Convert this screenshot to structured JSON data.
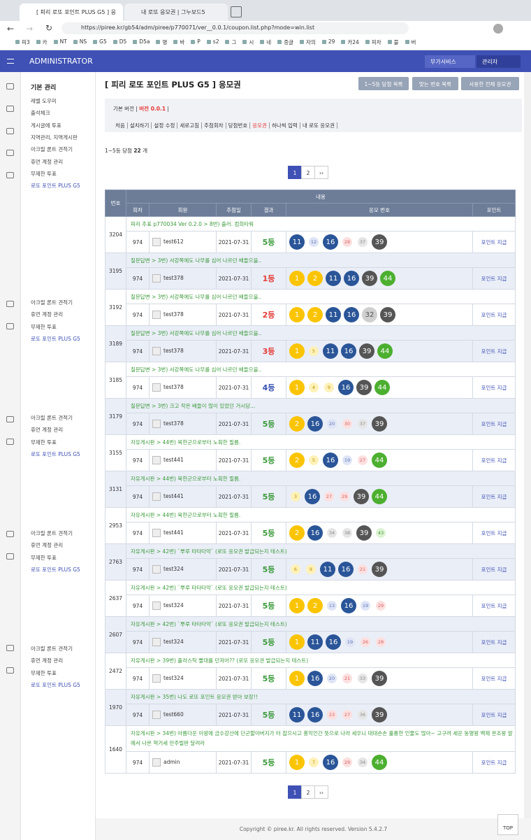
{
  "browser": {
    "tabs": [
      "[ 피리 로또 포인트 PLUS G5 ] 응",
      "내 로또 응모권 | 그누보드5"
    ],
    "url": "https://piree.kr/gb54/adm/piree/p770071/ver__0.0.1/coupon.list.php?mode=win.list",
    "bookmarks": [
      "피3",
      "카",
      "NT",
      "NS",
      "G5",
      "D5",
      "D5a",
      "명",
      "바",
      "P",
      "s2",
      "그",
      "시",
      "네",
      "증글",
      "자의",
      "29",
      "카24",
      "피차",
      "블",
      "버"
    ]
  },
  "header": {
    "brand": "ADMINISTRATOR",
    "buttons": [
      "부가서비스",
      "관리자"
    ]
  },
  "sidebar": {
    "title": "기본 관리",
    "items": [
      "레벨 도우미",
      "출석체크",
      "게시글에 투표",
      "지역관리, 지역게시판",
      "아크릴 론트 견적기",
      "휴먼 계정 관리",
      "무제한 투표",
      "로또 포인트 PLUS G5"
    ],
    "repeats": [
      [
        "아크릴 론트 견적기",
        "휴먼 계정 관리",
        "무제한 투표",
        "로또 포인트 PLUS G5"
      ],
      [
        "아크릴 론트 견적기",
        "휴먼 계정 관리",
        "무제한 투표",
        "로또 포인트 PLUS G5"
      ],
      [
        "아크릴 론트 견적기",
        "휴먼 계정 관리",
        "무제한 투표",
        "로또 포인트 PLUS G5"
      ],
      [
        "아크릴 론트 견적기",
        "휴먼 계정 관리",
        "무제한 투표",
        "로또 포인트 PLUS G5"
      ]
    ]
  },
  "page": {
    "title": "[ 피리 로또 포인트 PLUS G5 ] 응모권",
    "buttons": [
      "1~5등 당첨 목록",
      "맞는 번호 목록",
      "사용한 전체 응모권"
    ],
    "version_label": "기본 버전",
    "version": "버전 0.0.1",
    "nav": [
      "처음",
      "설치하기",
      "설정 수정",
      "새로고침",
      "추첨회차",
      "당첨번호",
      "응모권",
      "하나씩 입력",
      "내 로또 응모권"
    ],
    "active_nav": 6,
    "summary": {
      "label": "1~5등 당첨",
      "count": 22,
      "unit": "개"
    },
    "pagination": [
      "1",
      "2",
      "››"
    ]
  },
  "table": {
    "headers": {
      "id": "번호",
      "content": "내용",
      "round": "회차",
      "member": "회원",
      "date": "추첨일",
      "result": "결과",
      "numbers": "응모 번호",
      "point": "포인트"
    },
    "rows": [
      {
        "id": 3204,
        "title": "피리 추표 p770034 Ver 0.2.0 > 8번) 출러. 컴희타워",
        "round": 974,
        "member": "test612",
        "date": "2021-07-31",
        "result": "5등",
        "result_color": "#3a9a3a",
        "numbers": [
          11,
          12,
          16,
          28,
          37,
          39
        ],
        "states": [
          "hit",
          "miss",
          "hit",
          "miss",
          "miss",
          "hit"
        ],
        "action": "포인트 지급"
      },
      {
        "id": 3195,
        "title": "질문답변 > 3번) 서강쪽에도 나무를 심어 나르던 배들으을..",
        "round": 974,
        "member": "test378",
        "date": "2021-07-31",
        "result": "1등",
        "result_color": "#e53935",
        "numbers": [
          1,
          2,
          11,
          16,
          39,
          44
        ],
        "states": [
          "hit",
          "hit",
          "hit",
          "hit",
          "hit",
          "hit"
        ],
        "action": "포인트 지급"
      },
      {
        "id": 3192,
        "title": "질문답변 > 3번) 서강쪽에도 나무를 심어 나르던 배들으을..",
        "round": 974,
        "member": "test378",
        "date": "2021-07-31",
        "result": "2등",
        "result_color": "#e53935",
        "numbers": [
          1,
          2,
          11,
          16,
          32,
          39
        ],
        "states": [
          "hit",
          "hit",
          "hit",
          "hit",
          "bonus",
          "hit"
        ],
        "action": "포인트 지급"
      },
      {
        "id": 3189,
        "title": "질문답변 > 3번) 서강쪽에도 나무를 심어 나르던 배들으을..",
        "round": 974,
        "member": "test378",
        "date": "2021-07-31",
        "result": "3등",
        "result_color": "#e53935",
        "numbers": [
          1,
          5,
          11,
          16,
          39,
          44
        ],
        "states": [
          "hit",
          "miss",
          "hit",
          "hit",
          "hit",
          "hit"
        ],
        "action": "포인트 지급"
      },
      {
        "id": 3185,
        "title": "질문답변 > 3번) 서강쪽에도 나무를 심어 나르던 배들으을..",
        "round": 974,
        "member": "test378",
        "date": "2021-07-31",
        "result": "4등",
        "result_color": "#3550b0",
        "numbers": [
          1,
          4,
          9,
          16,
          39,
          44
        ],
        "states": [
          "hit",
          "miss",
          "miss",
          "hit",
          "hit",
          "hit"
        ],
        "action": "포인트 지급"
      },
      {
        "id": 3179,
        "title": "질문답변 > 3번) 크고 작은 배들이 많이 있었던 거시당...",
        "round": 974,
        "member": "test378",
        "date": "2021-07-31",
        "result": "5등",
        "result_color": "#3a9a3a",
        "numbers": [
          2,
          16,
          20,
          30,
          37,
          39
        ],
        "states": [
          "hit",
          "hit",
          "miss",
          "miss",
          "miss",
          "hit"
        ],
        "action": "포인트 지급"
      },
      {
        "id": 3155,
        "title": "자유게시판 > 44번) 북한군으로부터 노획한 필름.",
        "round": 974,
        "member": "test441",
        "date": "2021-07-31",
        "result": "5등",
        "result_color": "#3a9a3a",
        "numbers": [
          2,
          5,
          16,
          19,
          27,
          44
        ],
        "states": [
          "hit",
          "miss",
          "hit",
          "miss",
          "miss",
          "hit"
        ],
        "action": "포인트 지급"
      },
      {
        "id": 3131,
        "title": "자유게시판 > 44번) 북한군으로부터 노획한 필름.",
        "round": 974,
        "member": "test441",
        "date": "2021-07-31",
        "result": "5등",
        "result_color": "#3a9a3a",
        "numbers": [
          3,
          16,
          27,
          29,
          39,
          44
        ],
        "states": [
          "miss",
          "hit",
          "miss",
          "miss",
          "hit",
          "hit"
        ],
        "action": "포인트 지급"
      },
      {
        "id": 2953,
        "title": "자유게시판 > 44번) 북한군으로부터 노획한 필름.",
        "round": 974,
        "member": "test441",
        "date": "2021-07-31",
        "result": "5등",
        "result_color": "#3a9a3a",
        "numbers": [
          2,
          16,
          34,
          38,
          39,
          43
        ],
        "states": [
          "hit",
          "hit",
          "miss",
          "miss",
          "hit",
          "miss"
        ],
        "action": "포인트 지급"
      },
      {
        "id": 2763,
        "title": "자유게시판 > 42번) `뿌루 타타타악` (로또 응모권 발급되는지 테스트)",
        "round": 974,
        "member": "test324",
        "date": "2021-07-31",
        "result": "5등",
        "result_color": "#3a9a3a",
        "numbers": [
          6,
          9,
          11,
          16,
          21,
          39
        ],
        "states": [
          "miss",
          "miss",
          "hit",
          "hit",
          "miss",
          "hit"
        ],
        "action": "포인트 지급"
      },
      {
        "id": 2637,
        "title": "자유게시판 > 42번) `뿌루 타타타악` (로또 응모권 발급되는지 테스트)",
        "round": 974,
        "member": "test324",
        "date": "2021-07-31",
        "result": "5등",
        "result_color": "#3a9a3a",
        "numbers": [
          1,
          2,
          13,
          16,
          19,
          29
        ],
        "states": [
          "hit",
          "hit",
          "miss",
          "hit",
          "miss",
          "miss"
        ],
        "action": "포인트 지급"
      },
      {
        "id": 2607,
        "title": "자유게시판 > 42번) `뿌루 타타타악` (로또 응모권 발급되는지 테스트)",
        "round": 974,
        "member": "test324",
        "date": "2021-07-31",
        "result": "5등",
        "result_color": "#3a9a3a",
        "numbers": [
          1,
          11,
          16,
          19,
          26,
          28
        ],
        "states": [
          "hit",
          "hit",
          "hit",
          "miss",
          "miss",
          "miss"
        ],
        "action": "포인트 지급"
      },
      {
        "id": 2472,
        "title": "자유게시판 > 39번) 플라스틱 빨대를 던져어?? (로또 응모권 발급되는지 테스트)",
        "round": 974,
        "member": "test324",
        "date": "2021-07-31",
        "result": "5등",
        "result_color": "#3a9a3a",
        "numbers": [
          1,
          16,
          20,
          21,
          33,
          39
        ],
        "states": [
          "hit",
          "hit",
          "miss",
          "miss",
          "miss",
          "hit"
        ],
        "action": "포인트 지급"
      },
      {
        "id": 1970,
        "title": "자유게시판 > 35번) 나도 로또 포인트 응모권 받아 보장!!",
        "round": 974,
        "member": "test660",
        "date": "2021-07-31",
        "result": "5등",
        "result_color": "#3a9a3a",
        "numbers": [
          11,
          16,
          23,
          27,
          36,
          39
        ],
        "states": [
          "hit",
          "hit",
          "miss",
          "miss",
          "miss",
          "hit"
        ],
        "action": "포인트 지급"
      },
      {
        "id": 1640,
        "title": "자유게시판 > 34번) 아름다운 이땅에 금수강산에 단군할아버지가 터 잡으시고 홍익인간 뜻으로 나라 세우니 대대손손 훌륭한 인물도 많아~ 고구려 세운 동명왕 백제 온조왕 알에서 나온 혁거세 만주벌판 달려라",
        "round": 974,
        "member": "admin",
        "date": "2021-07-31",
        "result": "5등",
        "result_color": "#3a9a3a",
        "numbers": [
          1,
          7,
          16,
          29,
          34,
          44
        ],
        "states": [
          "hit",
          "miss",
          "hit",
          "miss",
          "miss",
          "hit"
        ],
        "action": "포인트 지급"
      }
    ]
  },
  "footer": {
    "copyright": "Copyright © piree.kr. All rights reserved. Version 5.4.2.7",
    "top": "TOP"
  }
}
